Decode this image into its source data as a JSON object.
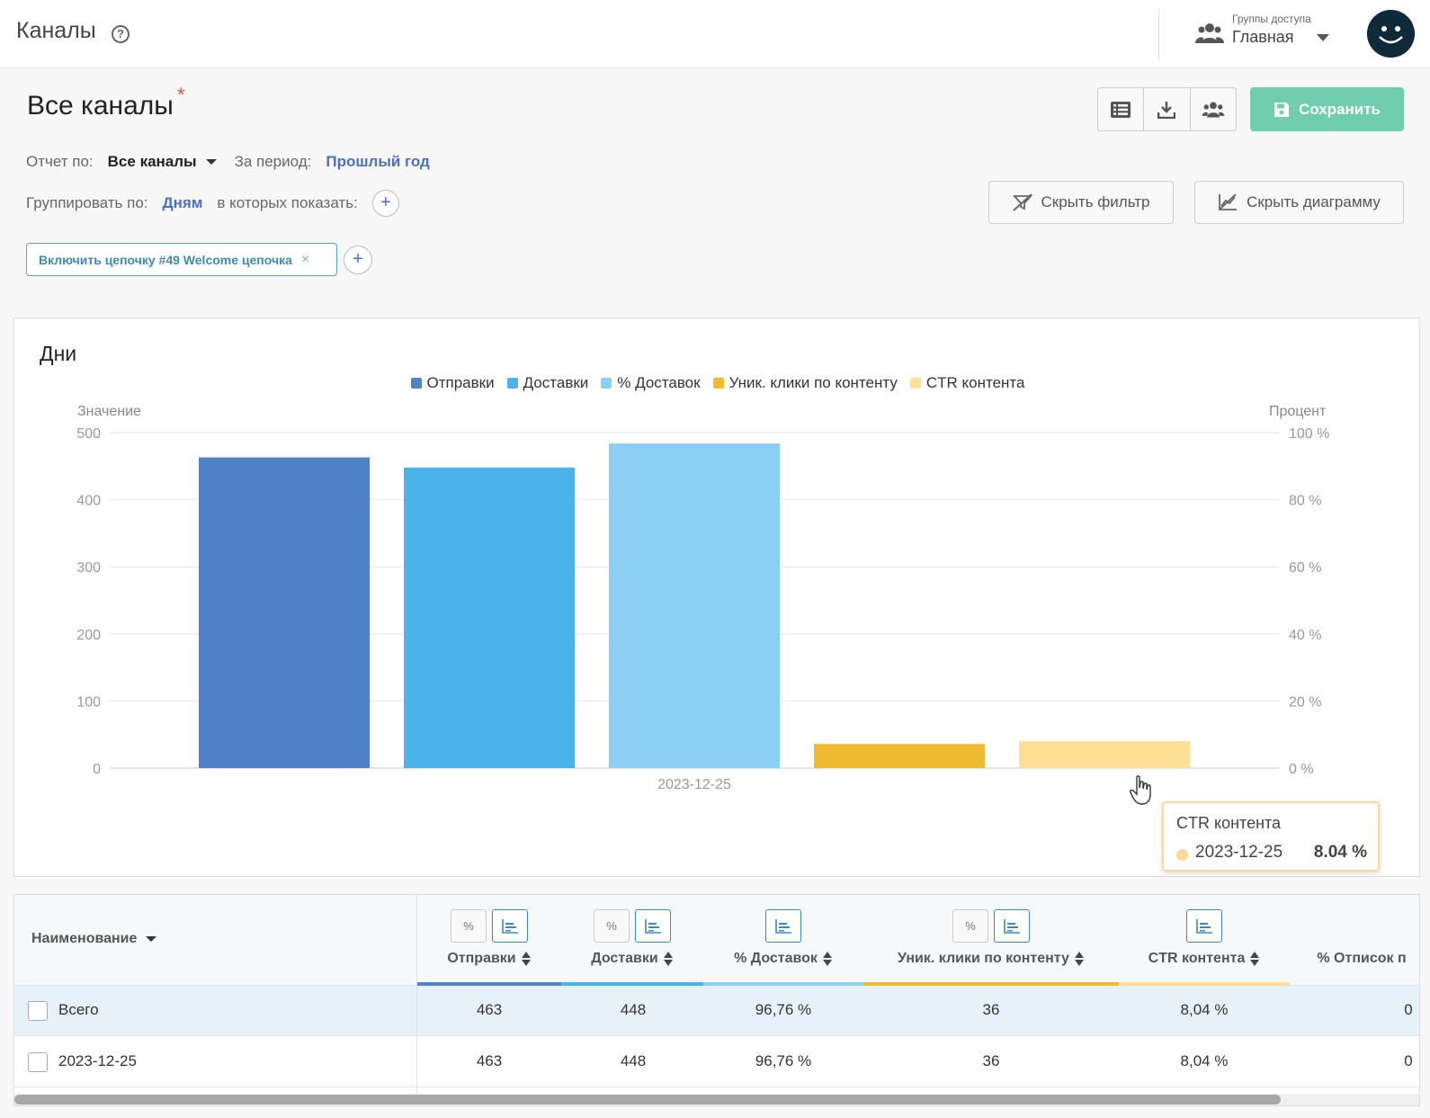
{
  "topbar": {
    "title": "Каналы",
    "help": "?",
    "access_groups_caption": "Группы доступа",
    "access_groups_value": "Главная"
  },
  "header": {
    "title": "Все каналы",
    "unsaved_marker": "*",
    "save_label": "Сохранить",
    "report_by_label": "Отчет по:",
    "report_by_value": "Все каналы",
    "period_label": "За период:",
    "period_value": "Прошлый год",
    "group_by_label": "Группировать по:",
    "group_by_value": "Дням",
    "show_in_label": "в которых показать:",
    "hide_filter_label": "Скрыть фильтр",
    "hide_chart_label": "Скрыть диаграмму",
    "filter_chip": "Включить цепочку #49 Welcome цепочка",
    "chip_close": "×",
    "add": "+"
  },
  "chart_data": {
    "type": "bar",
    "title": "Дни",
    "ylabel": "Значение",
    "y2label": "Процент",
    "categories": [
      "2023-12-25"
    ],
    "ylim": [
      0,
      500
    ],
    "y2lim": [
      0,
      100
    ],
    "yticks": [
      "0",
      "100",
      "200",
      "300",
      "400",
      "500"
    ],
    "y2ticks": [
      "0 %",
      "20 %",
      "40 %",
      "60 %",
      "80 %",
      "100 %"
    ],
    "grid": true,
    "legend_position": "top-center",
    "series": [
      {
        "name": "Отправки",
        "values": [
          463
        ],
        "axis": "left",
        "color": "#5182c9"
      },
      {
        "name": "Доставки",
        "values": [
          448
        ],
        "axis": "left",
        "color": "#4bb3e9"
      },
      {
        "name": "% Доставок",
        "values": [
          96.76
        ],
        "axis": "right",
        "color": "#8dcff2"
      },
      {
        "name": "Уник. клики по контенту",
        "values": [
          36
        ],
        "axis": "left",
        "color": "#efbb31"
      },
      {
        "name": "CTR контента",
        "values": [
          8.04
        ],
        "axis": "right",
        "color": "#fddf95"
      }
    ],
    "tooltip": {
      "series": "CTR контента",
      "date": "2023-12-25",
      "value": "8.04 %"
    }
  },
  "table": {
    "name_header": "Наименование",
    "columns": [
      {
        "label": "Отправки",
        "percent_toggle": "%",
        "color": "#5182c9"
      },
      {
        "label": "Доставки",
        "percent_toggle": "%",
        "color": "#4bb3e9"
      },
      {
        "label": "% Доставок",
        "percent_toggle": "",
        "color": "#8dcff2"
      },
      {
        "label": "Уник. клики по контенту",
        "percent_toggle": "%",
        "color": "#efbb31"
      },
      {
        "label": "CTR контента",
        "percent_toggle": "",
        "color": "#fddf95"
      },
      {
        "label": "% Отписок п",
        "percent_toggle": "",
        "color": ""
      }
    ],
    "rows": [
      {
        "name": "Всего",
        "values": [
          "463",
          "448",
          "96,76 %",
          "36",
          "8,04 %",
          "0"
        ]
      },
      {
        "name": "2023-12-25",
        "values": [
          "463",
          "448",
          "96,76 %",
          "36",
          "8,04 %",
          "0"
        ]
      }
    ]
  }
}
